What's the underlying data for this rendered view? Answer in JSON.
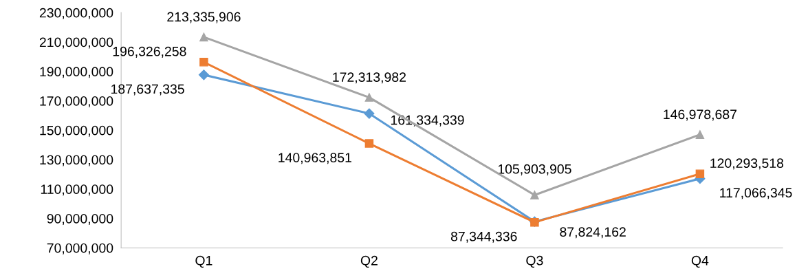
{
  "chart_data": {
    "type": "line",
    "categories": [
      "Q1",
      "Q2",
      "Q3",
      "Q4"
    ],
    "series": [
      {
        "color": "#5b9bd5",
        "marker": "diamond",
        "values": [
          187637335,
          161334339,
          87824162,
          117066345
        ],
        "value_labels": [
          "187,637,335",
          "161,334,339",
          "87,824,162",
          "117,066,345"
        ]
      },
      {
        "color": "#ed7d31",
        "marker": "square",
        "values": [
          196326258,
          140963851,
          87344336,
          120293518
        ],
        "value_labels": [
          "196,326,258",
          "140,963,851",
          "87,344,336",
          "120,293,518"
        ]
      },
      {
        "color": "#a5a5a5",
        "marker": "triangle",
        "values": [
          213335906,
          172313982,
          105903905,
          146978687
        ],
        "value_labels": [
          "213,335,906",
          "172,313,982",
          "105,903,905",
          "146,978,687"
        ]
      }
    ],
    "ylim": [
      70000000,
      230000000
    ],
    "yticks": [
      {
        "value": 70000000,
        "label": "70,000,000"
      },
      {
        "value": 90000000,
        "label": "90,000,000"
      },
      {
        "value": 110000000,
        "label": "110,000,000"
      },
      {
        "value": 130000000,
        "label": "130,000,000"
      },
      {
        "value": 150000000,
        "label": "150,000,000"
      },
      {
        "value": 170000000,
        "label": "170,000,000"
      },
      {
        "value": 190000000,
        "label": "190,000,000"
      },
      {
        "value": 210000000,
        "label": "210,000,000"
      },
      {
        "value": 230000000,
        "label": "230,000,000"
      }
    ],
    "grid": false,
    "line_style": "solid"
  }
}
